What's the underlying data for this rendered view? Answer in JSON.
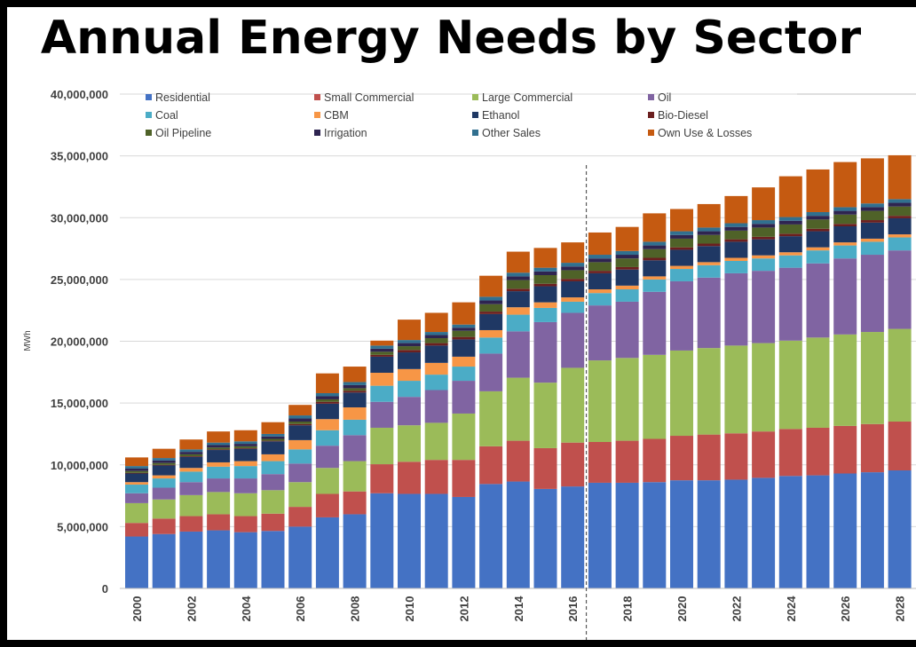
{
  "title": "Annual Energy Needs by Sector",
  "colors": {
    "Residential": "#4472C4",
    "Small Commercial": "#C0504D",
    "Large Commercial": "#9BBB59",
    "Oil": "#8064A2",
    "Coal": "#4BACC6",
    "CBM": "#F79646",
    "Ethanol": "#1F3864",
    "Bio-Diesel": "#6B1F1F",
    "Oil Pipeline": "#4F6228",
    "Irrigation": "#2E2450",
    "Other Sales": "#31708F",
    "Own Use & Losses": "#C55A11"
  },
  "chart_data": {
    "type": "bar",
    "stacked": true,
    "title": "Annual Energy Needs by Sector",
    "ylabel": "MWh",
    "xlabel": "",
    "ylim": [
      0,
      40000000
    ],
    "yticks": [
      "0",
      "5,000,000",
      "10,000,000",
      "15,000,000",
      "20,000,000",
      "25,000,000",
      "30,000,000",
      "35,000,000",
      "40,000,000"
    ],
    "ytick_values": [
      0,
      5000000,
      10000000,
      15000000,
      20000000,
      25000000,
      30000000,
      35000000,
      40000000
    ],
    "xtick_labels": [
      "2000",
      "2002",
      "2004",
      "2006",
      "2008",
      "2010",
      "2012",
      "2014",
      "2016",
      "2018",
      "2020",
      "2022",
      "2024",
      "2026",
      "2028"
    ],
    "forecast_divider_after": "2016",
    "legend_position": "top",
    "grid": true,
    "categories": [
      "2000",
      "2001",
      "2002",
      "2003",
      "2004",
      "2005",
      "2006",
      "2007",
      "2008",
      "2009",
      "2010",
      "2011",
      "2012",
      "2013",
      "2014",
      "2015",
      "2016",
      "2017",
      "2018",
      "2019",
      "2020",
      "2021",
      "2022",
      "2023",
      "2024",
      "2025",
      "2026",
      "2027",
      "2028"
    ],
    "series": [
      {
        "name": "Residential",
        "values": [
          4200000,
          4400000,
          4600000,
          4700000,
          4550000,
          4650000,
          5000000,
          5750000,
          6000000,
          7700000,
          7650000,
          7650000,
          7400000,
          8450000,
          8650000,
          8050000,
          8250000,
          8550000,
          8550000,
          8600000,
          8750000,
          8750000,
          8800000,
          8950000,
          9100000,
          9150000,
          9300000,
          9400000,
          9550000
        ]
      },
      {
        "name": "Small Commercial",
        "values": [
          1100000,
          1250000,
          1250000,
          1300000,
          1300000,
          1400000,
          1600000,
          1900000,
          1850000,
          2350000,
          2600000,
          2750000,
          3000000,
          3050000,
          3300000,
          3300000,
          3550000,
          3300000,
          3400000,
          3500000,
          3600000,
          3700000,
          3750000,
          3750000,
          3800000,
          3850000,
          3850000,
          3900000,
          3950000
        ]
      },
      {
        "name": "Large Commercial",
        "values": [
          1600000,
          1550000,
          1700000,
          1800000,
          1850000,
          1900000,
          2000000,
          2100000,
          2450000,
          2950000,
          2950000,
          3000000,
          3750000,
          4450000,
          5100000,
          5300000,
          6050000,
          6600000,
          6700000,
          6800000,
          6900000,
          7000000,
          7100000,
          7150000,
          7150000,
          7300000,
          7400000,
          7450000,
          7500000
        ]
      },
      {
        "name": "Oil",
        "values": [
          800000,
          950000,
          1050000,
          1100000,
          1200000,
          1300000,
          1500000,
          1800000,
          2100000,
          2100000,
          2300000,
          2650000,
          2650000,
          3050000,
          3750000,
          4900000,
          4450000,
          4450000,
          4550000,
          5100000,
          5600000,
          5700000,
          5850000,
          5850000,
          5900000,
          6000000,
          6150000,
          6250000,
          6350000
        ]
      },
      {
        "name": "Coal",
        "values": [
          700000,
          750000,
          850000,
          950000,
          1000000,
          1050000,
          1150000,
          1250000,
          1250000,
          1300000,
          1300000,
          1250000,
          1150000,
          1300000,
          1350000,
          1150000,
          900000,
          1000000,
          1000000,
          1000000,
          1000000,
          1000000,
          1000000,
          1000000,
          1000000,
          1050000,
          1050000,
          1050000,
          1050000
        ]
      },
      {
        "name": "CBM",
        "values": [
          200000,
          250000,
          300000,
          350000,
          400000,
          550000,
          750000,
          900000,
          1000000,
          1050000,
          950000,
          950000,
          800000,
          600000,
          600000,
          450000,
          350000,
          300000,
          300000,
          250000,
          250000,
          250000,
          250000,
          250000,
          250000,
          250000,
          250000,
          250000,
          250000
        ]
      },
      {
        "name": "Ethanol",
        "values": [
          700000,
          800000,
          900000,
          1000000,
          1000000,
          1050000,
          1200000,
          1250000,
          1200000,
          1300000,
          1350000,
          1400000,
          1400000,
          1300000,
          1300000,
          1300000,
          1300000,
          1300000,
          1300000,
          1300000,
          1300000,
          1300000,
          1300000,
          1300000,
          1300000,
          1300000,
          1300000,
          1300000,
          1300000
        ]
      },
      {
        "name": "Bio-Diesel",
        "values": [
          50000,
          50000,
          50000,
          50000,
          50000,
          50000,
          100000,
          150000,
          150000,
          150000,
          200000,
          200000,
          200000,
          200000,
          200000,
          200000,
          200000,
          200000,
          200000,
          200000,
          200000,
          200000,
          200000,
          200000,
          200000,
          200000,
          200000,
          200000,
          200000
        ]
      },
      {
        "name": "Oil Pipeline",
        "values": [
          150000,
          150000,
          150000,
          150000,
          150000,
          150000,
          200000,
          200000,
          200000,
          250000,
          300000,
          400000,
          500000,
          600000,
          700000,
          700000,
          700000,
          700000,
          700000,
          700000,
          700000,
          700000,
          700000,
          750000,
          750000,
          750000,
          750000,
          750000,
          750000
        ]
      },
      {
        "name": "Irrigation",
        "values": [
          200000,
          200000,
          200000,
          200000,
          200000,
          200000,
          250000,
          250000,
          250000,
          250000,
          250000,
          250000,
          250000,
          300000,
          300000,
          300000,
          300000,
          300000,
          300000,
          300000,
          300000,
          300000,
          300000,
          300000,
          300000,
          300000,
          300000,
          300000,
          300000
        ]
      },
      {
        "name": "Other Sales",
        "values": [
          200000,
          200000,
          200000,
          200000,
          200000,
          200000,
          250000,
          250000,
          250000,
          250000,
          250000,
          250000,
          250000,
          300000,
          300000,
          300000,
          300000,
          300000,
          300000,
          300000,
          300000,
          300000,
          300000,
          300000,
          300000,
          300000,
          300000,
          300000,
          300000
        ]
      },
      {
        "name": "Own Use & Losses",
        "values": [
          700000,
          750000,
          800000,
          900000,
          900000,
          950000,
          850000,
          1600000,
          1250000,
          400000,
          1650000,
          1550000,
          1800000,
          1700000,
          1700000,
          1600000,
          1650000,
          1800000,
          1950000,
          2300000,
          1800000,
          1900000,
          2200000,
          2650000,
          3300000,
          3450000,
          3650000,
          3650000,
          3550000
        ]
      }
    ]
  }
}
